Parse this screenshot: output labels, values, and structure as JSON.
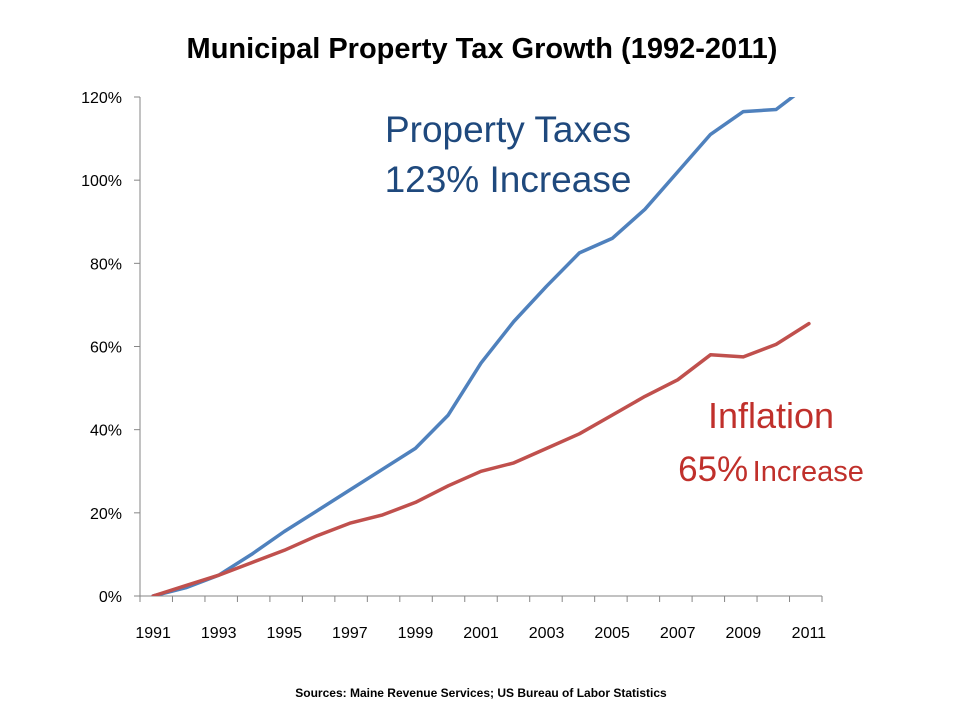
{
  "chart_data": {
    "type": "line",
    "title": "Municipal Property Tax Growth (1992-2011)",
    "xlabel": "",
    "ylabel": "",
    "x_ticks": [
      "1991",
      "1993",
      "1995",
      "1997",
      "1999",
      "2001",
      "2003",
      "2005",
      "2007",
      "2009",
      "2011"
    ],
    "y_ticks": [
      "0%",
      "20%",
      "40%",
      "60%",
      "80%",
      "100%",
      "120%"
    ],
    "xlim": [
      1990.6,
      2011.4
    ],
    "ylim": [
      0,
      120
    ],
    "grid": false,
    "x": [
      1991,
      1992,
      1993,
      1994,
      1995,
      1996,
      1997,
      1998,
      1999,
      2000,
      2001,
      2002,
      2003,
      2004,
      2005,
      2006,
      2007,
      2008,
      2009,
      2010,
      2011
    ],
    "series": [
      {
        "color": "#4F81BD",
        "values": [
          0,
          2,
          5,
          10,
          15.5,
          20.5,
          25.5,
          30.5,
          35.5,
          43.5,
          56,
          66,
          74.5,
          82.5,
          86,
          93,
          102,
          111,
          116.5,
          117,
          123
        ]
      },
      {
        "color": "#C0504D",
        "values": [
          0,
          2.5,
          5,
          8,
          11,
          14.5,
          17.5,
          19.5,
          22.5,
          26.5,
          30,
          32,
          35.5,
          39,
          43.5,
          48,
          52,
          58,
          57.5,
          60.5,
          65.5
        ]
      }
    ],
    "annotations": [
      {
        "line1": "Property Taxes",
        "line2_value": "123%",
        "line2_text": "Increase",
        "color": "#1F497D"
      },
      {
        "line1": "Inflation",
        "line2_value": "65%",
        "line2_text": "Increase",
        "color": "#C0302B"
      }
    ],
    "source": "Sources:  Maine Revenue Services; US Bureau of Labor Statistics"
  }
}
